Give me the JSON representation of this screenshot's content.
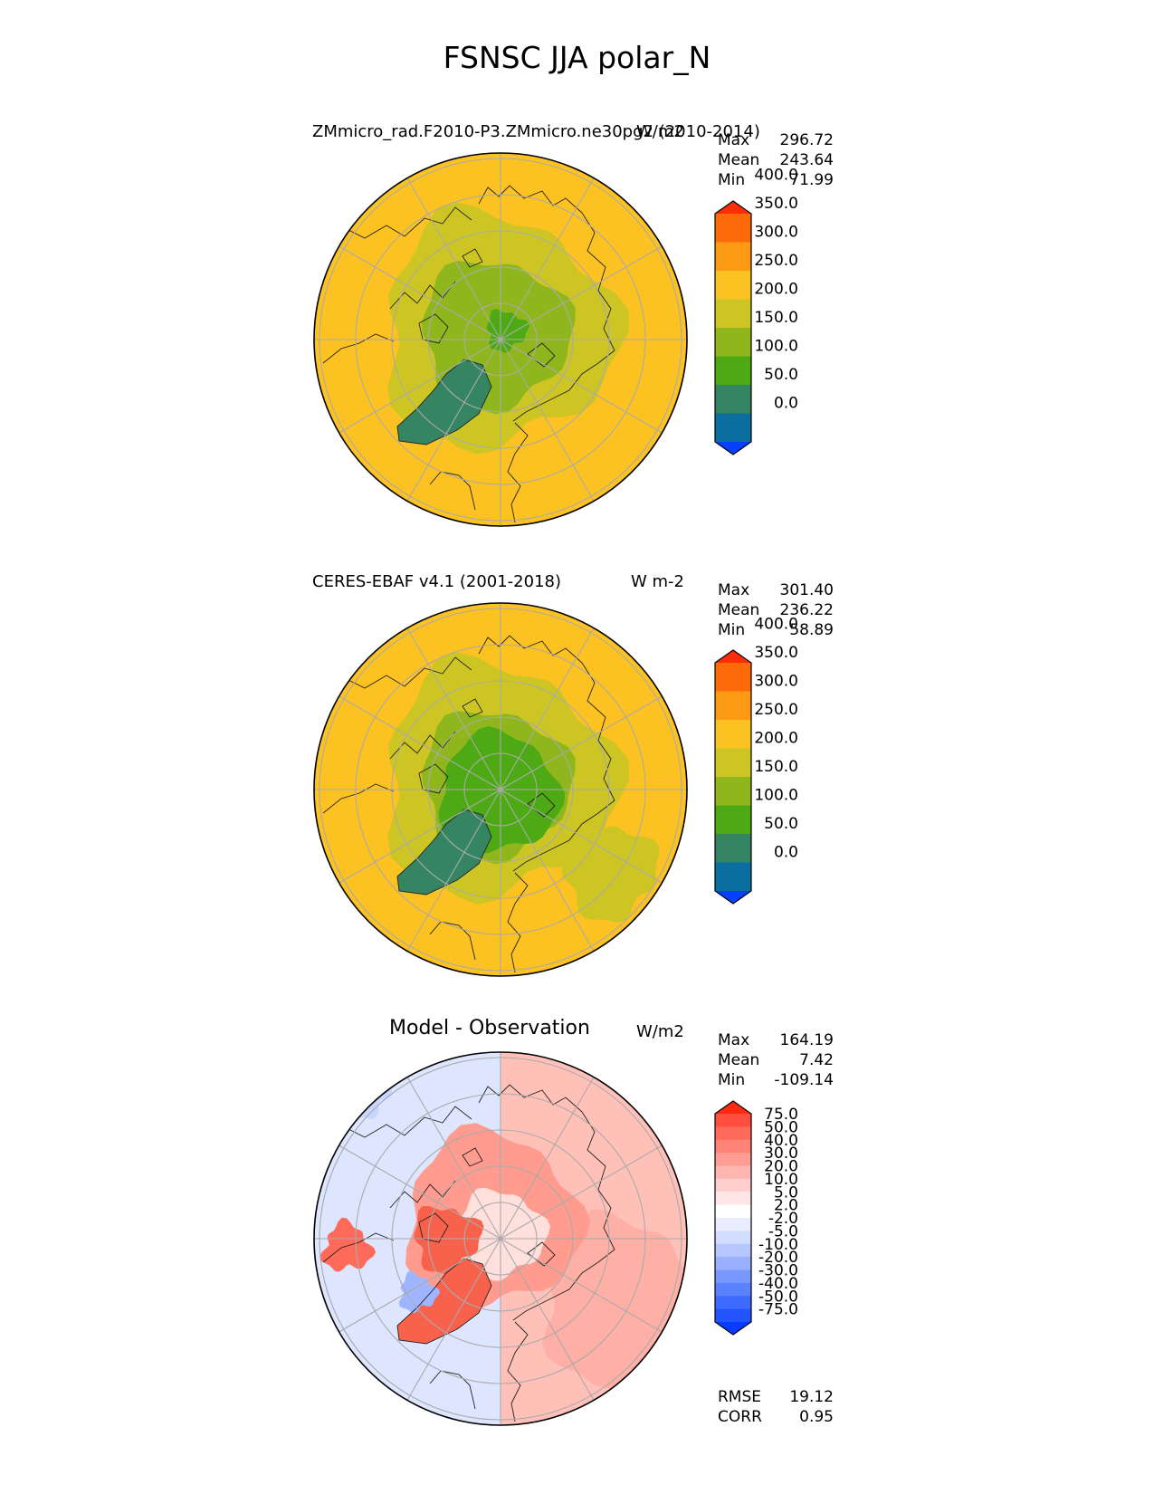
{
  "figure_title": "FSNSC JJA polar_N",
  "panels": [
    {
      "id": "model",
      "title_left": "ZMmicro_rad.F2010-P3.ZMmicro.ne30pg2 (2010-2014)",
      "units": "W/m2",
      "stats": [
        {
          "label": "Max",
          "value": "296.72"
        },
        {
          "label": "Mean",
          "value": "243.64"
        },
        {
          "label": "Min",
          "value": "71.99"
        }
      ],
      "colorbar": {
        "colors": [
          "#0540ff",
          "#0a6ea1",
          "#368562",
          "#4da914",
          "#8fb61c",
          "#cdc523",
          "#fcc222",
          "#fc9a13",
          "#fc6a09",
          "#fc2e05"
        ],
        "labels": [
          "0.0",
          "50.0",
          "100.0",
          "150.0",
          "200.0",
          "250.0",
          "300.0",
          "350.0",
          "400.0"
        ]
      },
      "map_colors": {
        "outer": "#fcc222",
        "ring1": "#cdc523",
        "ring2": "#8fb61c",
        "greenland": "#368562",
        "core": "#4da914"
      }
    },
    {
      "id": "obs",
      "title_left": "CERES-EBAF v4.1 (2001-2018)",
      "units": "W m-2",
      "stats": [
        {
          "label": "Max",
          "value": "301.40"
        },
        {
          "label": "Mean",
          "value": "236.22"
        },
        {
          "label": "Min",
          "value": "58.89"
        }
      ],
      "colorbar": {
        "colors": [
          "#0540ff",
          "#0a6ea1",
          "#368562",
          "#4da914",
          "#8fb61c",
          "#cdc523",
          "#fcc222",
          "#fc9a13",
          "#fc6a09",
          "#fc2e05"
        ],
        "labels": [
          "0.0",
          "50.0",
          "100.0",
          "150.0",
          "200.0",
          "250.0",
          "300.0",
          "350.0",
          "400.0"
        ]
      },
      "map_colors": {
        "outer": "#fcc222",
        "ring1": "#cdc523",
        "ring2": "#8fb61c",
        "greenland": "#368562",
        "core": "#4da914"
      }
    },
    {
      "id": "diff",
      "title_center": "Model - Observation",
      "units": "W/m2",
      "stats": [
        {
          "label": "Max",
          "value": "164.19"
        },
        {
          "label": "Mean",
          "value": "7.42"
        },
        {
          "label": "Min",
          "value": "-109.14"
        }
      ],
      "extra_stats": [
        {
          "label": "RMSE",
          "value": "19.12"
        },
        {
          "label": "CORR",
          "value": "0.95"
        }
      ],
      "colorbar": {
        "colors": [
          "#0a3cff",
          "#2255ff",
          "#3d6bff",
          "#5a82ff",
          "#7898ff",
          "#98b0ff",
          "#b6c6ff",
          "#d3ddff",
          "#e8edff",
          "#ffffff",
          "#ffe6e6",
          "#ffcfcf",
          "#ffb6b0",
          "#ff9c93",
          "#ff8377",
          "#ff6a5b",
          "#ff4e3d",
          "#fd2a12"
        ],
        "labels": [
          "-75.0",
          "-50.0",
          "-40.0",
          "-30.0",
          "-20.0",
          "-10.0",
          "-5.0",
          "-2.0",
          "2.0",
          "5.0",
          "10.0",
          "20.0",
          "30.0",
          "40.0",
          "50.0",
          "75.0"
        ]
      },
      "map_colors": {
        "base": "#dde5ff",
        "warm": "#ffc0b8",
        "hot": "#f8624c",
        "cold": "#9fb5ff",
        "core": "#ffe0dc"
      }
    }
  ]
}
